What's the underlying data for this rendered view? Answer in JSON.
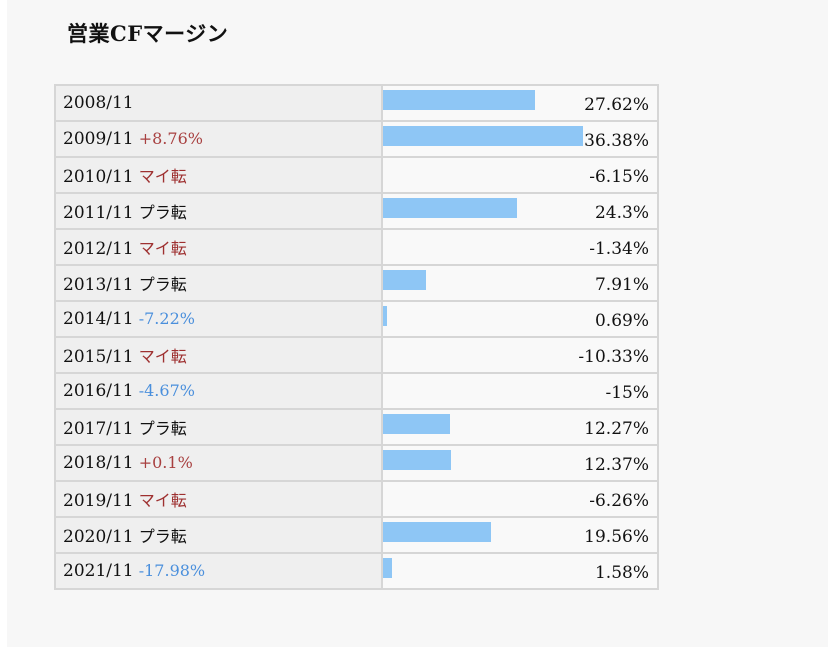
{
  "title": "営業CFマージン",
  "chart_data": {
    "type": "table",
    "title": "営業CFマージン",
    "unit": "%",
    "rows": [
      {
        "period": "2008/11",
        "change": "",
        "change_type": "none",
        "value": 27.62,
        "label": "27.62%"
      },
      {
        "period": "2009/11",
        "change": "+8.76%",
        "change_type": "up",
        "value": 36.38,
        "label": "36.38%"
      },
      {
        "period": "2010/11",
        "change": "マイ転",
        "change_type": "turn-minus",
        "value": -6.15,
        "label": "-6.15%"
      },
      {
        "period": "2011/11",
        "change": "プラ転",
        "change_type": "turn-plus",
        "value": 24.3,
        "label": "24.3%"
      },
      {
        "period": "2012/11",
        "change": "マイ転",
        "change_type": "turn-minus",
        "value": -1.34,
        "label": "-1.34%"
      },
      {
        "period": "2013/11",
        "change": "プラ転",
        "change_type": "turn-plus",
        "value": 7.91,
        "label": "7.91%"
      },
      {
        "period": "2014/11",
        "change": "-7.22%",
        "change_type": "down",
        "value": 0.69,
        "label": "0.69%"
      },
      {
        "period": "2015/11",
        "change": "マイ転",
        "change_type": "turn-minus",
        "value": -10.33,
        "label": "-10.33%"
      },
      {
        "period": "2016/11",
        "change": "-4.67%",
        "change_type": "down",
        "value": -15,
        "label": "-15%"
      },
      {
        "period": "2017/11",
        "change": "プラ転",
        "change_type": "turn-plus",
        "value": 12.27,
        "label": "12.27%"
      },
      {
        "period": "2018/11",
        "change": "+0.1%",
        "change_type": "up",
        "value": 12.37,
        "label": "12.37%"
      },
      {
        "period": "2019/11",
        "change": "マイ転",
        "change_type": "turn-minus",
        "value": -6.26,
        "label": "-6.26%"
      },
      {
        "period": "2020/11",
        "change": "プラ転",
        "change_type": "turn-plus",
        "value": 19.56,
        "label": "19.56%"
      },
      {
        "period": "2021/11",
        "change": "-17.98%",
        "change_type": "down",
        "value": 1.58,
        "label": "1.58%"
      }
    ],
    "bar_max": 36.38,
    "colors": {
      "bar": "#8ec6f5",
      "up": "#a84040",
      "down": "#4a8fdc",
      "turn_minus": "#9e3030",
      "turn_plus": "#111111"
    }
  }
}
